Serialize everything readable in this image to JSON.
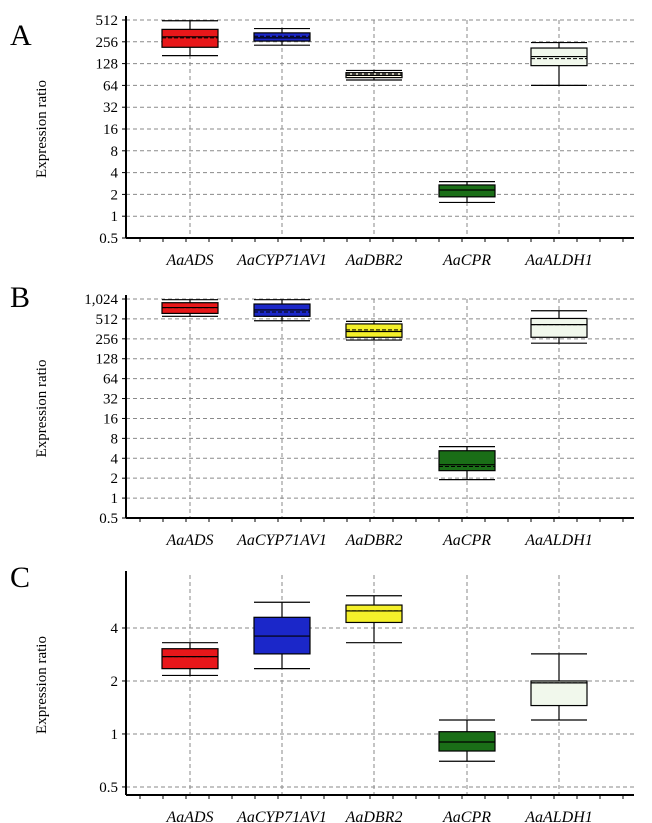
{
  "chart_data": [
    {
      "panel": "A",
      "type": "box",
      "ylabel": "Expression ratio",
      "yscale": "log2",
      "ylim": [
        0.5,
        512
      ],
      "yticks": [
        "0.5",
        "1",
        "2",
        "4",
        "8",
        "16",
        "32",
        "64",
        "128",
        "256",
        "512"
      ],
      "categories": [
        "AaADS",
        "AaCYP71AV1",
        "AaDBR2",
        "AaCPR",
        "AaALDH1"
      ],
      "boxes": [
        {
          "name": "AaADS",
          "color": "#e8171a",
          "whisker_low": 165,
          "q1": 215,
          "median": 300,
          "mean": 290,
          "q3": 380,
          "whisker_high": 500
        },
        {
          "name": "AaCYP71AV1",
          "color": "#1b27c9",
          "whisker_low": 230,
          "q1": 262,
          "median": 290,
          "mean": 305,
          "q3": 340,
          "whisker_high": 390
        },
        {
          "name": "AaDBR2",
          "color": "#fffce6",
          "whisker_low": 76,
          "q1": 82,
          "median": 88,
          "mean": 92,
          "q3": 96,
          "whisker_high": 103
        },
        {
          "name": "AaCPR",
          "color": "#1a6e17",
          "whisker_low": 1.55,
          "q1": 1.85,
          "median": 2.3,
          "mean": 2.3,
          "q3": 2.7,
          "whisker_high": 3.0
        },
        {
          "name": "AaALDH1",
          "color": "#f1f8ec",
          "whisker_low": 64,
          "q1": 120,
          "median": 160,
          "mean": 150,
          "q3": 210,
          "whisker_high": 250
        }
      ]
    },
    {
      "panel": "B",
      "type": "box",
      "ylabel": "Expression ratio",
      "yscale": "log2",
      "ylim": [
        0.5,
        1024
      ],
      "yticks": [
        "0.5",
        "1",
        "2",
        "4",
        "8",
        "16",
        "32",
        "64",
        "128",
        "256",
        "512",
        "1,024"
      ],
      "categories": [
        "AaADS",
        "AaCYP71AV1",
        "AaDBR2",
        "AaCPR",
        "AaALDH1"
      ],
      "boxes": [
        {
          "name": "AaADS",
          "color": "#e8171a",
          "whisker_low": 560,
          "q1": 620,
          "median": 760,
          "mean": 760,
          "q3": 900,
          "whisker_high": 1000
        },
        {
          "name": "AaCYP71AV1",
          "color": "#1b27c9",
          "whisker_low": 480,
          "q1": 560,
          "median": 700,
          "mean": 650,
          "q3": 860,
          "whisker_high": 1000
        },
        {
          "name": "AaDBR2",
          "color": "#f4f02a",
          "whisker_low": 245,
          "q1": 270,
          "median": 330,
          "mean": 350,
          "q3": 430,
          "whisker_high": 470
        },
        {
          "name": "AaCPR",
          "color": "#1a6e17",
          "whisker_low": 1.9,
          "q1": 2.6,
          "median": 3.2,
          "mean": 3.0,
          "q3": 5.2,
          "whisker_high": 6.0
        },
        {
          "name": "AaALDH1",
          "color": "#f1f8ec",
          "whisker_low": 220,
          "q1": 270,
          "median": 420,
          "mean": 420,
          "q3": 520,
          "whisker_high": 680
        }
      ]
    },
    {
      "panel": "C",
      "type": "box",
      "ylabel": "Expression ratio",
      "yscale": "log2",
      "ylim": [
        0.45,
        8
      ],
      "yticks": [
        "0.5",
        "1",
        "2",
        "4"
      ],
      "categories": [
        "AaADS",
        "AaCYP71AV1",
        "AaDBR2",
        "AaCPR",
        "AaALDH1"
      ],
      "boxes": [
        {
          "name": "AaADS",
          "color": "#e8171a",
          "whisker_low": 2.15,
          "q1": 2.35,
          "median": 2.75,
          "mean": 2.75,
          "q3": 3.05,
          "whisker_high": 3.3
        },
        {
          "name": "AaCYP71AV1",
          "color": "#1b27c9",
          "whisker_low": 2.35,
          "q1": 2.85,
          "median": 3.6,
          "mean": 3.6,
          "q3": 4.6,
          "whisker_high": 5.6
        },
        {
          "name": "AaDBR2",
          "color": "#f4f02a",
          "whisker_low": 3.3,
          "q1": 4.3,
          "median": 5.0,
          "mean": 5.0,
          "q3": 5.4,
          "whisker_high": 6.1
        },
        {
          "name": "AaCPR",
          "color": "#1a6e17",
          "whisker_low": 0.7,
          "q1": 0.8,
          "median": 0.9,
          "mean": 0.9,
          "q3": 1.03,
          "whisker_high": 1.2
        },
        {
          "name": "AaALDH1",
          "color": "#f1f8ec",
          "whisker_low": 1.2,
          "q1": 1.45,
          "median": 1.95,
          "mean": 1.95,
          "q3": 2.0,
          "whisker_high": 2.85
        }
      ]
    }
  ],
  "panels": {
    "A": {
      "letter": "A"
    },
    "B": {
      "letter": "B"
    },
    "C": {
      "letter": "C"
    }
  }
}
